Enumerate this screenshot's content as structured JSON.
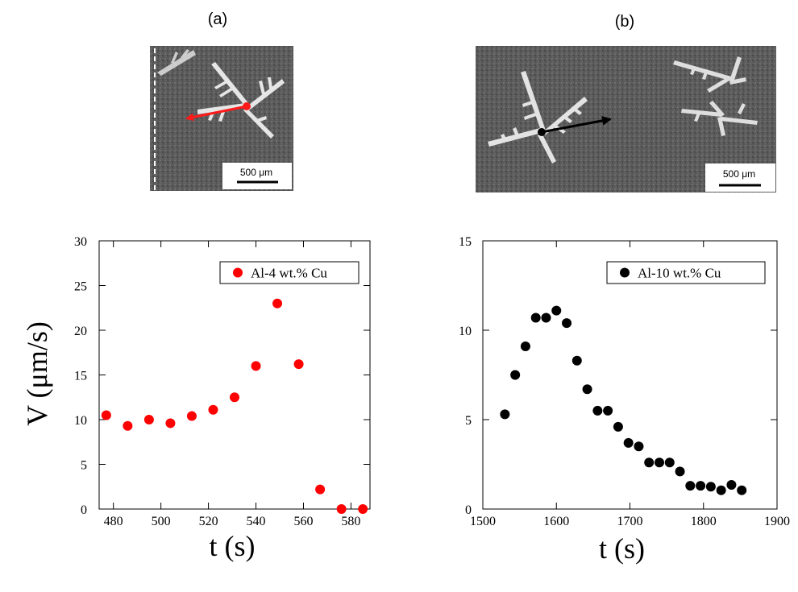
{
  "panels": [
    {
      "label": "(a)",
      "scale_bar": "500 μm"
    },
    {
      "label": "(b)",
      "scale_bar": "500 μm"
    }
  ],
  "y_axis_label": "V (μm/s)",
  "colors": {
    "series_a": "#ff0000",
    "series_b": "#000000"
  },
  "chart_data": [
    {
      "type": "scatter",
      "xlabel": "t (s)",
      "ylabel": "V (μm/s)",
      "xlim": [
        474,
        588
      ],
      "ylim": [
        0,
        30
      ],
      "xticks": [
        480,
        500,
        520,
        540,
        560,
        580
      ],
      "yticks": [
        0,
        5,
        10,
        15,
        20,
        25,
        30
      ],
      "legend_position": "top-right",
      "grid": false,
      "series": [
        {
          "name": "Al-4 wt.% Cu",
          "color": "#ff0000",
          "x": [
            477,
            486,
            495,
            504,
            513,
            522,
            531,
            540,
            549,
            558,
            567,
            576,
            585
          ],
          "y": [
            10.5,
            9.3,
            10.0,
            9.6,
            10.4,
            11.1,
            12.5,
            16.0,
            23.0,
            16.2,
            2.2,
            0.0,
            0.0
          ]
        }
      ]
    },
    {
      "type": "scatter",
      "xlabel": "t (s)",
      "ylabel": "",
      "xlim": [
        1500,
        1900
      ],
      "ylim": [
        0,
        15
      ],
      "xticks": [
        1500,
        1600,
        1700,
        1800,
        1900
      ],
      "yticks": [
        0,
        5,
        10,
        15
      ],
      "legend_position": "top-right",
      "grid": false,
      "series": [
        {
          "name": "Al-10 wt.% Cu",
          "color": "#000000",
          "x": [
            1530,
            1544,
            1558,
            1572,
            1586,
            1600,
            1614,
            1628,
            1642,
            1656,
            1670,
            1684,
            1698,
            1712,
            1726,
            1740,
            1754,
            1768,
            1782,
            1796,
            1810,
            1824,
            1838,
            1852
          ],
          "y": [
            5.3,
            7.5,
            9.1,
            10.7,
            10.7,
            11.1,
            10.4,
            8.3,
            6.7,
            5.5,
            5.5,
            4.6,
            3.7,
            3.5,
            2.6,
            2.6,
            2.6,
            2.1,
            1.3,
            1.3,
            1.25,
            1.05,
            1.35,
            1.05
          ]
        }
      ]
    }
  ]
}
